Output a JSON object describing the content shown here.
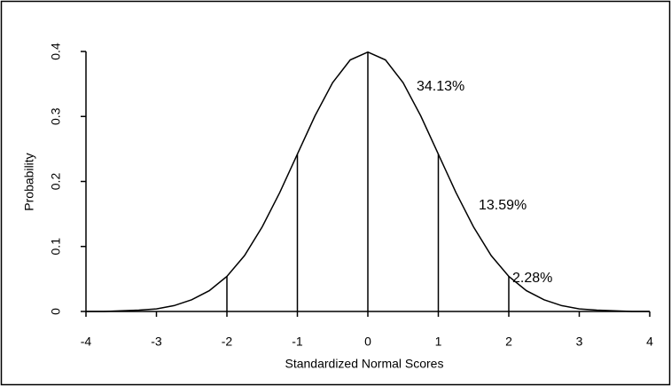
{
  "chart_data": {
    "type": "line",
    "xlabel": "Standardized Normal Scores",
    "ylabel": "Probability",
    "x": [
      -4,
      -3.75,
      -3.5,
      -3.25,
      -3,
      -2.75,
      -2.5,
      -2.25,
      -2,
      -1.75,
      -1.5,
      -1.25,
      -1,
      -0.75,
      -0.5,
      -0.25,
      0,
      0.25,
      0.5,
      0.75,
      1,
      1.25,
      1.5,
      1.75,
      2,
      2.25,
      2.5,
      2.75,
      3,
      3.25,
      3.5,
      3.75,
      4
    ],
    "series": [
      {
        "color": "#000000",
        "values": [
          0,
          0,
          0.001,
          0.002,
          0.004,
          0.009,
          0.018,
          0.032,
          0.054,
          0.086,
          0.13,
          0.183,
          0.242,
          0.301,
          0.352,
          0.387,
          0.399,
          0.387,
          0.352,
          0.301,
          0.242,
          0.183,
          0.13,
          0.086,
          0.054,
          0.032,
          0.018,
          0.009,
          0.004,
          0.002,
          0.001,
          0,
          0
        ]
      }
    ],
    "vlines": {
      "x": [
        -2,
        -1,
        0,
        1,
        2
      ],
      "values": [
        0.054,
        0.242,
        0.399,
        0.242,
        0.054
      ]
    },
    "annotations": [
      "34.13%",
      "13.59%",
      "2.28%"
    ],
    "xlim": [
      -4,
      4
    ],
    "ylim": [
      0,
      0.4
    ],
    "xticks": [
      -4,
      -3,
      -2,
      -1,
      0,
      1,
      2,
      3,
      4
    ],
    "yticks": [
      0,
      0.1,
      0.2,
      0.3,
      0.4
    ]
  }
}
